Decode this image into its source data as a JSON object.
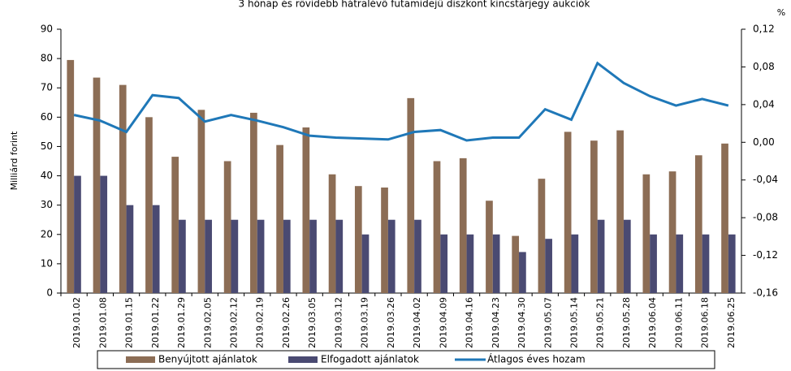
{
  "chart_data": {
    "type": "bar_line",
    "title": "3 hónap és rövidebb hátralévő futamidejű diszkont kincstárjegy aukciók",
    "y_label": "Milliárd forint",
    "y2_label": "%",
    "categories": [
      "2019.01.02",
      "2019.01.08",
      "2019.01.15",
      "2019.01.22",
      "2019.01.29",
      "2019.02.05",
      "2019.02.12",
      "2019.02.19",
      "2019.02.26",
      "2019.03.05",
      "2019.03.12",
      "2019.03.19",
      "2019.03.26",
      "2019.04.02",
      "2019.04.09",
      "2019.04.16",
      "2019.04.23",
      "2019.04.30",
      "2019.05.07",
      "2019.05.14",
      "2019.05.21",
      "2019.05.28",
      "2019.06.04",
      "2019.06.11",
      "2019.06.18",
      "2019.06.25"
    ],
    "series": [
      {
        "name": "Benyújtott ajánlatok",
        "color": "#8c6d55",
        "values": [
          79.5,
          73.5,
          71,
          60,
          46.5,
          62.5,
          45,
          61.5,
          50.5,
          56.5,
          40.5,
          36.5,
          36,
          66.5,
          45,
          46,
          31.5,
          19.5,
          39,
          55,
          52,
          55.5,
          40.5,
          41.5,
          47,
          51
        ]
      },
      {
        "name": "Elfogadott ajánlatok",
        "color": "#4a4a72",
        "values": [
          40,
          40,
          30,
          30,
          25,
          25,
          25,
          25,
          25,
          25,
          25,
          20,
          25,
          25,
          20,
          20,
          20,
          14,
          18.5,
          20,
          25,
          25,
          20,
          20,
          20,
          20
        ]
      },
      {
        "name": "Átlagos éves hozam",
        "color": "#1f78b8",
        "axis": "y2",
        "values": [
          0.029,
          0.023,
          0.011,
          0.05,
          0.047,
          0.022,
          0.029,
          0.023,
          0.016,
          0.007,
          0.005,
          0.004,
          0.003,
          0.011,
          0.013,
          0.002,
          0.005,
          0.005,
          0.035,
          0.024,
          0.084,
          0.063,
          0.049,
          0.039,
          0.046,
          0.039
        ]
      }
    ],
    "ylim": [
      0,
      90
    ],
    "yticks": [
      0,
      10,
      20,
      30,
      40,
      50,
      60,
      70,
      80,
      90
    ],
    "y2lim": [
      -0.16,
      0.12
    ],
    "y2ticks": [
      {
        "value": -0.16,
        "label": "-0,16"
      },
      {
        "value": -0.12,
        "label": "-0,12"
      },
      {
        "value": -0.08,
        "label": "-0,08"
      },
      {
        "value": -0.04,
        "label": "-0,04"
      },
      {
        "value": 0,
        "label": "0,00"
      },
      {
        "value": 0.04,
        "label": "0,04"
      },
      {
        "value": 0.08,
        "label": "0,08"
      },
      {
        "value": 0.12,
        "label": "0,12"
      }
    ],
    "legend": "bottom"
  }
}
